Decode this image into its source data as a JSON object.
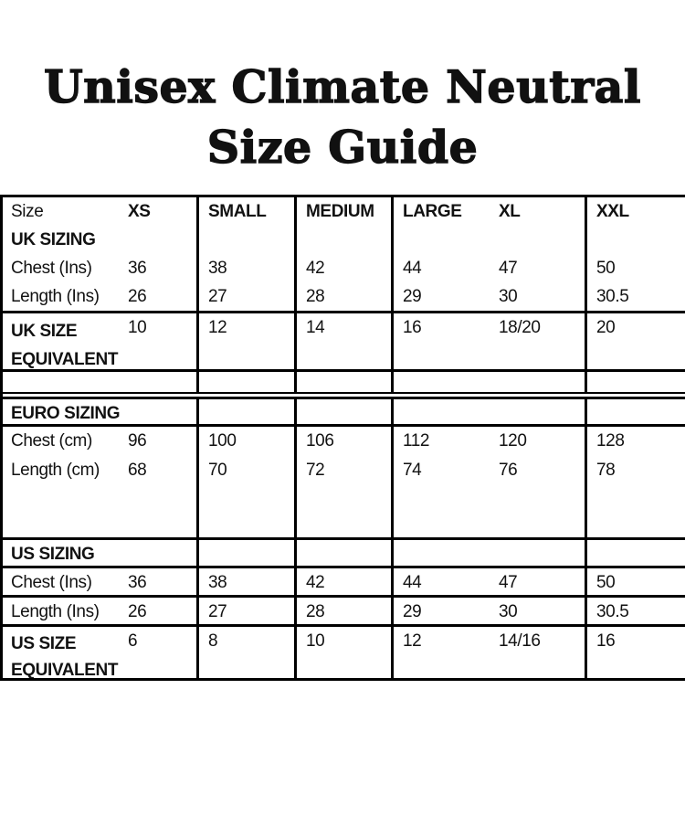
{
  "colors": {
    "background": "#ffffff",
    "text": "#121212",
    "border": "#000000"
  },
  "title": {
    "line1": "Unisex Climate Neutral",
    "line2": "Size Guide"
  },
  "table": {
    "header_label": "Size",
    "columns": [
      "XS",
      "SMALL",
      "MEDIUM",
      "LARGE",
      "XL",
      "XXL"
    ],
    "sections": {
      "uk": {
        "heading": "UK SIZING",
        "chest_label": "Chest (Ins)",
        "chest": [
          "36",
          "38",
          "42",
          "44",
          "47",
          "50"
        ],
        "length_label": "Length (Ins)",
        "length": [
          "26",
          "27",
          "28",
          "29",
          "30",
          "30.5"
        ],
        "equiv_label_line1": "UK SIZE",
        "equiv_label_line2": "EQUIVALENT",
        "equiv": [
          "10",
          "12",
          "14",
          "16",
          "18/20",
          "20"
        ]
      },
      "euro": {
        "heading": "EURO SIZING",
        "chest_label": "Chest (cm)",
        "chest": [
          "96",
          "100",
          "106",
          "112",
          "120",
          "128"
        ],
        "length_label": "Length (cm)",
        "length": [
          "68",
          "70",
          "72",
          "74",
          "76",
          "78"
        ]
      },
      "us": {
        "heading": "US SIZING",
        "chest_label": "Chest (Ins)",
        "chest": [
          "36",
          "38",
          "42",
          "44",
          "47",
          "50"
        ],
        "length_label": "Length (Ins)",
        "length": [
          "26",
          "27",
          "28",
          "29",
          "30",
          "30.5"
        ],
        "equiv_label_line1": "US SIZE",
        "equiv_label_line2": "EQUIVALENT",
        "equiv": [
          "6",
          "8",
          "10",
          "12",
          "14/16",
          "16"
        ]
      }
    }
  }
}
